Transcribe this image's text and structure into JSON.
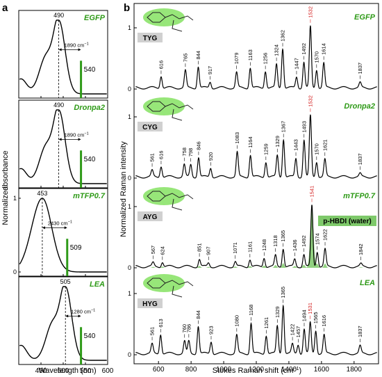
{
  "panel_labels": {
    "a": "a",
    "b": "b"
  },
  "colors": {
    "green": "#2e9a17",
    "green_fill": "#7ec96a",
    "red": "#d42020",
    "curve": "#000000",
    "chip": "#d0d0d0"
  },
  "absorbance": {
    "ylabel_left": "Normalized",
    "ylabel_right": "absorbance",
    "xlabel": "Wavelength (nm)",
    "xlim": [
      400,
      600
    ],
    "xticks": [
      "450",
      "500",
      "550",
      "600"
    ],
    "panels": [
      {
        "protein": "EGFP",
        "peak_nm": 490,
        "peak_label": "490",
        "emission_nm": 540,
        "emission_label": "540",
        "stokes_label": "1890 cm",
        "superscript": "−1",
        "shoulder": true,
        "show_y_ticks": false
      },
      {
        "protein": "Dronpa2",
        "peak_nm": 490,
        "peak_label": "490",
        "emission_nm": 540,
        "emission_label": "540",
        "stokes_label": "1890 cm",
        "superscript": "−1",
        "shoulder": true,
        "show_y_ticks": false
      },
      {
        "protein": "mTFP0.7",
        "peak_nm": 453,
        "peak_label": "453",
        "emission_nm": 509,
        "emission_label": "509",
        "stokes_label": "2430 cm",
        "superscript": "−1",
        "shoulder": false,
        "show_y_ticks": true,
        "yticks": [
          "0",
          "1"
        ]
      },
      {
        "protein": "LEA",
        "peak_nm": 505,
        "peak_label": "505",
        "emission_nm": 540,
        "emission_label": "540",
        "stokes_label": "1280 cm",
        "superscript": "−1",
        "shoulder": true,
        "show_y_ticks": false
      }
    ]
  },
  "raman": {
    "ylabel": "Normalized Raman intensity",
    "xlabel": "Stokes Raman shift (cm",
    "xlabel_sup": "−1",
    "xlabel_end": ")",
    "xlim": [
      450,
      1950
    ],
    "xticks": [
      600,
      800,
      1000,
      1200,
      1400,
      1600,
      1800
    ],
    "yticks": [
      "0",
      "1"
    ],
    "spectra": [
      {
        "protein": "EGFP",
        "chromophore": "TYG",
        "peaks": [
          [
            616,
            0.2
          ],
          [
            765,
            0.28
          ],
          [
            844,
            0.35
          ],
          [
            917,
            0.1
          ],
          [
            1079,
            0.25
          ],
          [
            1163,
            0.33
          ],
          [
            1256,
            0.28
          ],
          [
            1324,
            0.38
          ],
          [
            1362,
            0.65
          ],
          [
            1447,
            0.18
          ],
          [
            1492,
            0.42
          ],
          [
            1532,
            1.0
          ],
          [
            1570,
            0.3
          ],
          [
            1614,
            0.4
          ],
          [
            1837,
            0.08
          ]
        ],
        "labels": [
          "616",
          "765",
          "844",
          "917",
          "1079",
          "1163",
          "1256",
          "1324",
          "1362",
          "1447",
          "1492",
          "1532",
          "1570",
          "1614",
          "1837"
        ],
        "red": [
          "1532"
        ]
      },
      {
        "protein": "Dronpa2",
        "chromophore": "CYG",
        "peaks": [
          [
            561,
            0.1
          ],
          [
            616,
            0.18
          ],
          [
            758,
            0.2
          ],
          [
            798,
            0.2
          ],
          [
            846,
            0.32
          ],
          [
            920,
            0.15
          ],
          [
            1083,
            0.4
          ],
          [
            1164,
            0.36
          ],
          [
            1259,
            0.25
          ],
          [
            1329,
            0.35
          ],
          [
            1367,
            0.62
          ],
          [
            1443,
            0.3
          ],
          [
            1493,
            0.6
          ],
          [
            1532,
            1.0
          ],
          [
            1570,
            0.25
          ],
          [
            1621,
            0.28
          ],
          [
            1837,
            0.05
          ]
        ],
        "labels": [
          "561",
          "616",
          "758",
          "798",
          "846",
          "920",
          "1083",
          "1164",
          "1259",
          "1329",
          "1367",
          "1443",
          "1493",
          "1532",
          "1570",
          "1621",
          "1837"
        ],
        "red": [
          "1532"
        ]
      },
      {
        "protein": "mTFP0.7",
        "chromophore": "AYG",
        "overlay_label": "p-HBDI (water)",
        "peaks": [
          [
            567,
            0.06
          ],
          [
            624,
            0.08
          ],
          [
            851,
            0.12
          ],
          [
            907,
            0.06
          ],
          [
            1071,
            0.08
          ],
          [
            1161,
            0.12
          ],
          [
            1248,
            0.15
          ],
          [
            1318,
            0.18
          ],
          [
            1365,
            0.3
          ],
          [
            1436,
            0.12
          ],
          [
            1492,
            0.2
          ],
          [
            1541,
            1.0
          ],
          [
            1574,
            0.25
          ],
          [
            1622,
            0.28
          ],
          [
            1842,
            0.04
          ]
        ],
        "labels": [
          "567",
          "624",
          "851",
          "907",
          "1071",
          "1161",
          "1248",
          "1318",
          "1365",
          "1436",
          "1492",
          "1541",
          "1574",
          "1622",
          "1842"
        ],
        "red": [
          "1541"
        ]
      },
      {
        "protein": "LEA",
        "chromophore": "HYG",
        "peaks": [
          [
            561,
            0.15
          ],
          [
            613,
            0.32
          ],
          [
            760,
            0.2
          ],
          [
            786,
            0.2
          ],
          [
            844,
            0.45
          ],
          [
            923,
            0.2
          ],
          [
            1080,
            0.3
          ],
          [
            1168,
            0.5
          ],
          [
            1261,
            0.3
          ],
          [
            1329,
            0.45
          ],
          [
            1365,
            0.8
          ],
          [
            1422,
            0.15
          ],
          [
            1457,
            0.15
          ],
          [
            1494,
            0.4
          ],
          [
            1531,
            0.5
          ],
          [
            1565,
            0.38
          ],
          [
            1616,
            0.3
          ],
          [
            1837,
            0.12
          ]
        ],
        "labels": [
          "561",
          "613",
          "760",
          "786",
          "844",
          "923",
          "1080",
          "1168",
          "1261",
          "1329",
          "1365",
          "1422",
          "1457",
          "1494",
          "1531",
          "1565",
          "1616",
          "1837"
        ],
        "red": [
          "1531"
        ]
      }
    ]
  }
}
